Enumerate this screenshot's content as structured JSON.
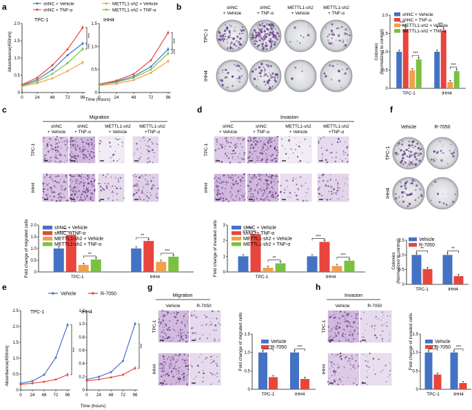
{
  "colors": {
    "blue": "#4472c4",
    "red": "#e8453c",
    "orange": "#f0a04b",
    "green": "#7ac142",
    "purple": "#6b3f8a"
  },
  "panel_labels": {
    "a": "a",
    "b": "b",
    "c": "c",
    "d": "d",
    "e": "e",
    "f": "f",
    "g": "g",
    "h": "h"
  },
  "groups4": [
    "shNC + Vehicle",
    "shNC + TNF-α",
    "METTL1-sh2 + Vehicle",
    "METTL1-sh2 + TNF-α"
  ],
  "groups2": [
    "Vehicle",
    "R-7050"
  ],
  "cells": [
    "TPC-1",
    "IHH4"
  ],
  "stars": {
    "s3": "***",
    "s2": "**"
  },
  "col_heads": {
    "shnc_veh": [
      "shNC",
      "+ Vehicle"
    ],
    "shnc_tnf": [
      "shNC",
      "+ TNF-α"
    ],
    "mettl_veh": [
      "METTL1-sh2",
      "+ Vehicle"
    ],
    "mettl_tnf_b": [
      "METTL1-sh2",
      "+ TNF-α"
    ],
    "mettl_tnf_cd": [
      "METTL1-sh2",
      "+TNF-α"
    ]
  },
  "titles": {
    "migration": "Migration",
    "invasion": "Invasion"
  },
  "axis_labels": {
    "absorbance": "Absorbance(450nm)",
    "time": "Time (hours)",
    "colonies": [
      "Colonies",
      "(Normalized to control)"
    ],
    "migrated": "Fold change of migrated cells",
    "invaded": "Fold change of invaded cells"
  },
  "chart_data": [
    {
      "id": "a-tpc1",
      "type": "line",
      "title": "TPC-1",
      "x": [
        0,
        24,
        48,
        72,
        96
      ],
      "xlabel": "Time (hours)",
      "ylabel": "Absorbance(450nm)",
      "ylim": [
        0,
        2.0
      ],
      "yticks": [
        0,
        0.5,
        1.0,
        1.5,
        2.0
      ],
      "series": [
        {
          "name": "shNC + Vehicle",
          "values": [
            0.21,
            0.37,
            0.66,
            1.08,
            1.42
          ]
        },
        {
          "name": "shNC + TNF-α",
          "values": [
            0.23,
            0.43,
            0.79,
            1.25,
            1.88
          ]
        },
        {
          "name": "METTL1-sh2 + Vehicle",
          "values": [
            0.18,
            0.27,
            0.41,
            0.62,
            0.87
          ]
        },
        {
          "name": "METTL1-sh2 + TNF-α",
          "values": [
            0.2,
            0.32,
            0.54,
            0.85,
            1.26
          ]
        }
      ]
    },
    {
      "id": "a-ihh4",
      "type": "line",
      "title": "IHH4",
      "x": [
        0,
        24,
        48,
        72,
        96
      ],
      "xlabel": "Time (hours)",
      "ylabel": "",
      "ylim": [
        0,
        1.5
      ],
      "yticks": [
        0,
        0.5,
        1.0,
        1.5
      ],
      "series": [
        {
          "name": "shNC + Vehicle",
          "values": [
            0.16,
            0.24,
            0.35,
            0.56,
            0.94
          ]
        },
        {
          "name": "shNC + TNF-α",
          "values": [
            0.18,
            0.26,
            0.4,
            0.7,
            1.3
          ]
        },
        {
          "name": "METTL1-sh2 + Vehicle",
          "values": [
            0.15,
            0.19,
            0.27,
            0.43,
            0.68
          ]
        },
        {
          "name": "METTL1-sh2 + TNF-α",
          "values": [
            0.17,
            0.22,
            0.32,
            0.5,
            0.85
          ]
        }
      ]
    },
    {
      "id": "b",
      "type": "bar",
      "categories": [
        "TPC-1",
        "IHH4"
      ],
      "ylabel": "Colonies (Normalized to control)",
      "ylim": [
        0,
        2.0
      ],
      "yticks": [
        0,
        0.5,
        1.0,
        1.5,
        2.0
      ],
      "series": [
        {
          "name": "shNC + Vehicle",
          "values": [
            1.0,
            1.0
          ]
        },
        {
          "name": "shNC + TNF-α",
          "values": [
            1.62,
            1.58
          ]
        },
        {
          "name": "METTL1-sh2 + Vehicle",
          "values": [
            0.49,
            0.17
          ]
        },
        {
          "name": "METTL1-sh2 + TNF-α",
          "values": [
            0.79,
            0.47
          ]
        }
      ]
    },
    {
      "id": "c",
      "type": "bar",
      "categories": [
        "TPC-1",
        "IHH4"
      ],
      "ylabel": "Fold change of migrated cells",
      "ylim": [
        0,
        2.0
      ],
      "yticks": [
        0,
        0.5,
        1.0,
        1.5,
        2.0
      ],
      "series": [
        {
          "name": "shNC + Vehicle",
          "values": [
            1.0,
            1.0
          ]
        },
        {
          "name": "shNC + TNF-α",
          "values": [
            1.58,
            1.32
          ]
        },
        {
          "name": "METTL1-sh2 + Vehicle",
          "values": [
            0.3,
            0.43
          ]
        },
        {
          "name": "METTL1-sh2 + TNF-α",
          "values": [
            0.53,
            0.65
          ]
        }
      ]
    },
    {
      "id": "d",
      "type": "bar",
      "categories": [
        "TPC-1",
        "IHH4"
      ],
      "ylabel": "Fold change of invaded cells",
      "ylim": [
        0,
        3
      ],
      "yticks": [
        0,
        1,
        2,
        3
      ],
      "series": [
        {
          "name": "shNC + Vehicle",
          "values": [
            1.0,
            1.0
          ]
        },
        {
          "name": "shNC + TNF-α",
          "values": [
            2.42,
            1.92
          ]
        },
        {
          "name": "METTL1-sh2 + Vehicle",
          "values": [
            0.27,
            0.38
          ]
        },
        {
          "name": "METTL1-sh2 + TNF-α",
          "values": [
            0.55,
            0.72
          ]
        }
      ]
    },
    {
      "id": "e-tpc1",
      "type": "line",
      "title": "TPC-1",
      "x": [
        0,
        24,
        48,
        72,
        96
      ],
      "xlabel": "Time (hours)",
      "ylabel": "Absorbance(450nm)",
      "ylim": [
        0,
        2.5
      ],
      "yticks": [
        0,
        0.5,
        1.0,
        1.5,
        2.0,
        2.5
      ],
      "series": [
        {
          "name": "Vehicle",
          "values": [
            0.21,
            0.28,
            0.48,
            1.02,
            2.05
          ]
        },
        {
          "name": "R-7050",
          "values": [
            0.18,
            0.21,
            0.26,
            0.33,
            0.48
          ]
        }
      ]
    },
    {
      "id": "e-ihh4",
      "type": "line",
      "title": "IHH4",
      "x": [
        0,
        24,
        48,
        72,
        96
      ],
      "xlabel": "",
      "ylabel": "",
      "ylim": [
        0,
        1.2
      ],
      "yticks": [
        0,
        0.2,
        0.4,
        0.6,
        0.8,
        1.0,
        1.2
      ],
      "series": [
        {
          "name": "Vehicle",
          "values": [
            0.16,
            0.2,
            0.27,
            0.44,
            1.0
          ]
        },
        {
          "name": "R-7050",
          "values": [
            0.14,
            0.16,
            0.19,
            0.23,
            0.33
          ]
        }
      ]
    },
    {
      "id": "f",
      "type": "bar",
      "categories": [
        "TPC-1",
        "IHH4"
      ],
      "ylabel": "Colonies (Normalized to control)",
      "ylim": [
        0,
        1.5
      ],
      "yticks": [
        0,
        0.5,
        1.0,
        1.5
      ],
      "series": [
        {
          "name": "Vehicle",
          "values": [
            1.0,
            1.0
          ]
        },
        {
          "name": "R-7050",
          "values": [
            0.52,
            0.28
          ]
        }
      ]
    },
    {
      "id": "g",
      "type": "bar",
      "categories": [
        "TPC-1",
        "IHH4"
      ],
      "ylabel": "Fold change of migrated cells",
      "ylim": [
        0,
        1.5
      ],
      "yticks": [
        0,
        0.5,
        1.0,
        1.5
      ],
      "series": [
        {
          "name": "Vehicle",
          "values": [
            1.0,
            1.0
          ]
        },
        {
          "name": "R-7050",
          "values": [
            0.33,
            0.28
          ]
        }
      ]
    },
    {
      "id": "h",
      "type": "bar",
      "categories": [
        "TPC-1",
        "IHH4"
      ],
      "ylabel": "Fold change of invaded cells",
      "ylim": [
        0,
        1.5
      ],
      "yticks": [
        0,
        0.5,
        1.0,
        1.5
      ],
      "series": [
        {
          "name": "Vehicle",
          "values": [
            1.0,
            1.0
          ]
        },
        {
          "name": "R-7050",
          "values": [
            0.4,
            0.17
          ]
        }
      ]
    }
  ]
}
